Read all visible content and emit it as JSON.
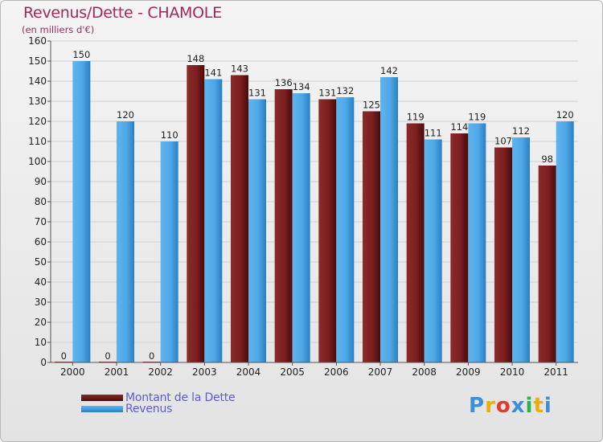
{
  "header": {
    "title": "Revenus/Dette - CHAMOLE",
    "subtitle": "(en milliers d'€)"
  },
  "legend": {
    "debt_label": "Montant de la Dette",
    "revenue_label": "Revenus"
  },
  "logo": {
    "text": "Proxiti",
    "letters": [
      "P",
      "r",
      "o",
      "x",
      "i",
      "t",
      "i"
    ],
    "letter_colors": [
      "#3a8fd8",
      "#e8b000",
      "#e23a2c",
      "#3a8fd8",
      "#2bb34a",
      "#e8b000",
      "#3a8fd8"
    ]
  },
  "colors": {
    "debt": "#7b1f1f",
    "debt_dark": "#4a0a0a",
    "revenue": "#4fa8e6",
    "revenue_dark": "#2a7fc4",
    "axis_text": "#222222",
    "grid": "#cfcfcf"
  },
  "chart_data": {
    "type": "bar",
    "title": "Revenus/Dette - CHAMOLE",
    "subtitle": "(en milliers d'€)",
    "categories": [
      "2000",
      "2001",
      "2002",
      "2003",
      "2004",
      "2005",
      "2006",
      "2007",
      "2008",
      "2009",
      "2010",
      "2011"
    ],
    "series": [
      {
        "name": "Montant de la Dette",
        "values": [
          0,
          0,
          0,
          148,
          143,
          136,
          131,
          125,
          119,
          114,
          107,
          98
        ]
      },
      {
        "name": "Revenus",
        "values": [
          150,
          120,
          110,
          141,
          131,
          134,
          132,
          142,
          111,
          119,
          112,
          120
        ]
      }
    ],
    "ylim": [
      0,
      160
    ],
    "yticks": [
      0,
      10,
      20,
      30,
      40,
      50,
      60,
      70,
      80,
      90,
      100,
      110,
      120,
      130,
      140,
      150,
      160
    ],
    "grid": true,
    "legend_position": "bottom-left",
    "data_labels": true
  }
}
